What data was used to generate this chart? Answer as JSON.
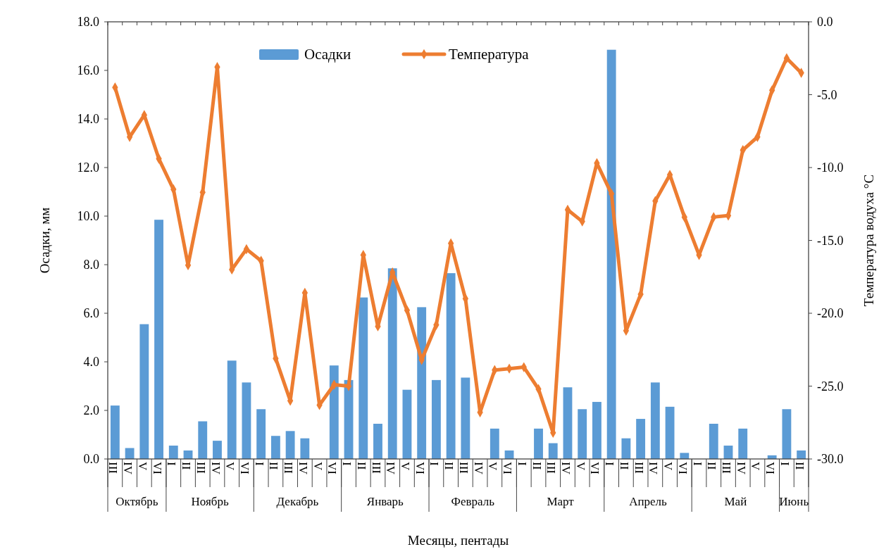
{
  "chart_data": {
    "type": "bar",
    "xlabel": "Месяцы, пентады",
    "ylabel": "Осадки, мм",
    "y2label": "Температура водуха °C",
    "categories": [
      "III",
      "IV",
      "V",
      "VI",
      "I",
      "II",
      "III",
      "IV",
      "V",
      "VI",
      "I",
      "II",
      "III",
      "IV",
      "V",
      "VI",
      "I",
      "II",
      "III",
      "IV",
      "V",
      "VI",
      "I",
      "II",
      "III",
      "IV",
      "V",
      "VI",
      "I",
      "II",
      "III",
      "IV",
      "V",
      "VI",
      "I",
      "II",
      "III",
      "IV",
      "V",
      "VI",
      "I",
      "II",
      "III",
      "IV",
      "V",
      "VI",
      "I",
      "II"
    ],
    "annotations": [
      "Октябрь",
      "Ноябрь",
      "Декабрь",
      "Январь",
      "Февраль",
      "Март",
      "Апрель",
      "Май",
      "Июнь"
    ],
    "series": [
      {
        "name": "Осадки",
        "color": "#5b9bd5",
        "values": [
          2.2,
          0.45,
          5.55,
          9.85,
          0.55,
          0.35,
          1.55,
          0.75,
          4.05,
          3.15,
          2.05,
          0.95,
          1.15,
          0.85,
          0,
          3.85,
          3.25,
          6.65,
          1.45,
          7.85,
          2.85,
          6.25,
          3.25,
          7.65,
          3.35,
          0,
          1.25,
          0.35,
          0,
          1.25,
          0.65,
          2.95,
          2.05,
          2.35,
          16.85,
          0.85,
          1.65,
          3.15,
          2.15,
          0.25,
          0,
          1.45,
          0.55,
          1.25,
          0,
          0.15,
          2.05,
          0.35
        ]
      },
      {
        "name": "Температура",
        "type": "line",
        "axis": "y2",
        "color": "#ed7d31",
        "values": [
          -4.5,
          -7.9,
          -6.4,
          -9.4,
          -11.5,
          -16.7,
          -11.7,
          -3.1,
          -17.0,
          -15.6,
          -16.4,
          -23.1,
          -26.0,
          -18.6,
          -26.3,
          -24.9,
          -25.0,
          -16.0,
          -20.9,
          -17.2,
          -19.8,
          -23.2,
          -20.8,
          -15.2,
          -19.0,
          -26.8,
          -23.9,
          -23.8,
          -23.7,
          -25.2,
          -28.2,
          -12.9,
          -13.7,
          -9.7,
          -11.8,
          -21.2,
          -18.7,
          -12.3,
          -10.5,
          -13.4,
          -16.0,
          -13.4,
          -13.3,
          -8.8,
          -7.9,
          -4.7,
          -2.5,
          -3.5
        ]
      }
    ],
    "ylim": [
      0,
      18
    ],
    "yticks": [
      {
        "value": 0,
        "label": "0.0"
      },
      {
        "value": 2,
        "label": "2.0"
      },
      {
        "value": 4,
        "label": "4.0"
      },
      {
        "value": 6,
        "label": "6.0"
      },
      {
        "value": 8,
        "label": "8.0"
      },
      {
        "value": 10,
        "label": "10.0"
      },
      {
        "value": 12,
        "label": "12.0"
      },
      {
        "value": 14,
        "label": "14.0"
      },
      {
        "value": 16,
        "label": "16.0"
      },
      {
        "value": 18,
        "label": "18.0"
      }
    ],
    "y2lim": [
      -30,
      0
    ],
    "y2ticks": [
      {
        "value": -30,
        "label": "-30.0"
      },
      {
        "value": -25,
        "label": "-25.0"
      },
      {
        "value": -20,
        "label": "-20.0"
      },
      {
        "value": -15,
        "label": "-15.0"
      },
      {
        "value": -10,
        "label": "-10.0"
      },
      {
        "value": -5,
        "label": "-5.0"
      },
      {
        "value": 0,
        "label": "0.0"
      }
    ],
    "legend": "top",
    "marker": "diamond",
    "line_style": "solid",
    "grid": false
  }
}
